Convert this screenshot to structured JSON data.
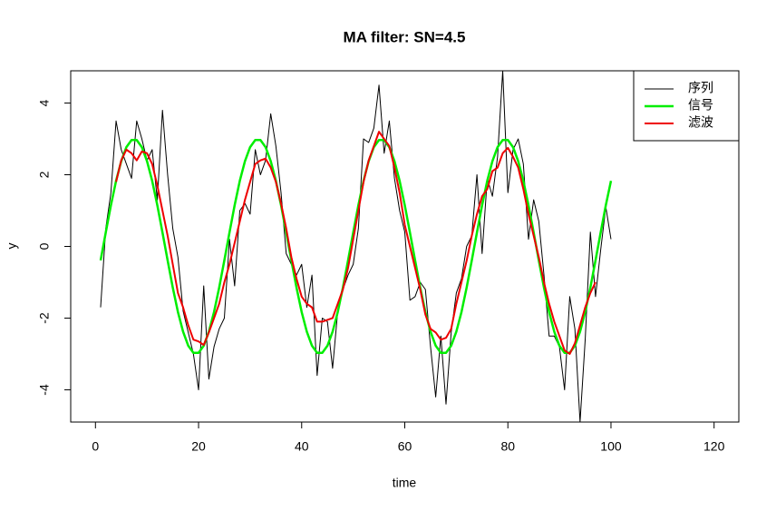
{
  "chart_data": {
    "type": "line",
    "title": "MA filter: SN=4.5",
    "x_label": "time",
    "y_label": "y",
    "x": [
      1,
      2,
      3,
      4,
      5,
      6,
      7,
      8,
      9,
      10,
      11,
      12,
      13,
      14,
      15,
      16,
      17,
      18,
      19,
      20,
      21,
      22,
      23,
      24,
      25,
      26,
      27,
      28,
      29,
      30,
      31,
      32,
      33,
      34,
      35,
      36,
      37,
      38,
      39,
      40,
      41,
      42,
      43,
      44,
      45,
      46,
      47,
      48,
      49,
      50,
      51,
      52,
      53,
      54,
      55,
      56,
      57,
      58,
      59,
      60,
      61,
      62,
      63,
      64,
      65,
      66,
      67,
      68,
      69,
      70,
      71,
      72,
      73,
      74,
      75,
      76,
      77,
      78,
      79,
      80,
      81,
      82,
      83,
      84,
      85,
      86,
      87,
      88,
      89,
      90,
      91,
      92,
      93,
      94,
      95,
      96,
      97,
      98,
      99,
      100
    ],
    "series": [
      {
        "name": "序列",
        "color": "#000000",
        "width": 1,
        "values": [
          -1.7,
          0.5,
          1.5,
          3.5,
          2.7,
          2.3,
          1.9,
          3.5,
          3.0,
          2.4,
          2.7,
          1.3,
          3.8,
          2.0,
          0.5,
          -0.3,
          -1.8,
          -2.4,
          -3.0,
          -4.0,
          -1.1,
          -3.7,
          -2.8,
          -2.3,
          -2.0,
          0.2,
          -1.1,
          1.0,
          1.2,
          0.9,
          2.7,
          2.0,
          2.4,
          3.7,
          2.8,
          1.5,
          -0.2,
          -0.5,
          -0.8,
          -0.5,
          -1.7,
          -0.8,
          -3.6,
          -2.0,
          -2.1,
          -3.4,
          -1.8,
          -1.2,
          -0.8,
          -0.5,
          0.5,
          3.0,
          2.9,
          3.3,
          4.5,
          2.6,
          3.5,
          1.9,
          1.0,
          0.4,
          -1.5,
          -1.4,
          -1.0,
          -1.2,
          -2.8,
          -4.2,
          -2.5,
          -4.4,
          -2.4,
          -1.3,
          -0.9,
          0.0,
          0.3,
          2.0,
          -0.2,
          1.9,
          1.4,
          2.5,
          4.9,
          1.5,
          2.7,
          3.0,
          2.3,
          0.2,
          1.3,
          0.7,
          -0.8,
          -2.5,
          -2.5,
          -2.8,
          -4.0,
          -1.4,
          -2.3,
          -4.9,
          -2.6,
          0.4,
          -1.4,
          -0.1,
          1.1,
          0.2
        ]
      },
      {
        "name": "信号",
        "color": "#00ee00",
        "width": 2.5,
        "values": [
          -0.39,
          0.39,
          1.15,
          1.83,
          2.38,
          2.77,
          2.97,
          2.97,
          2.77,
          2.38,
          1.83,
          1.15,
          0.39,
          -0.39,
          -1.15,
          -1.83,
          -2.38,
          -2.77,
          -2.97,
          -2.97,
          -2.77,
          -2.38,
          -1.83,
          -1.15,
          -0.39,
          0.39,
          1.15,
          1.83,
          2.38,
          2.77,
          2.97,
          2.97,
          2.77,
          2.38,
          1.83,
          1.15,
          0.39,
          -0.39,
          -1.15,
          -1.83,
          -2.38,
          -2.77,
          -2.97,
          -2.97,
          -2.77,
          -2.38,
          -1.83,
          -1.15,
          -0.39,
          0.39,
          1.15,
          1.83,
          2.38,
          2.77,
          2.97,
          2.97,
          2.77,
          2.38,
          1.83,
          1.15,
          0.39,
          -0.39,
          -1.15,
          -1.83,
          -2.38,
          -2.77,
          -2.97,
          -2.97,
          -2.77,
          -2.38,
          -1.83,
          -1.15,
          -0.39,
          0.39,
          1.15,
          1.83,
          2.38,
          2.77,
          2.97,
          2.97,
          2.77,
          2.38,
          1.83,
          1.15,
          0.39,
          -0.39,
          -1.15,
          -1.83,
          -2.38,
          -2.77,
          -2.97,
          -2.97,
          -2.77,
          -2.38,
          -1.83,
          -1.15,
          -0.39,
          0.39,
          1.15,
          1.83
        ]
      },
      {
        "name": "滤波",
        "color": "#ee0000",
        "width": 2,
        "values": [
          null,
          null,
          null,
          1.8,
          2.4,
          2.7,
          2.6,
          2.4,
          2.65,
          2.6,
          2.3,
          1.7,
          1.0,
          0.3,
          -0.5,
          -1.3,
          -1.7,
          -2.2,
          -2.6,
          -2.65,
          -2.75,
          -2.4,
          -2.0,
          -1.6,
          -1.0,
          -0.5,
          0.1,
          0.7,
          1.3,
          1.8,
          2.3,
          2.4,
          2.45,
          2.2,
          1.8,
          1.2,
          0.5,
          -0.3,
          -0.9,
          -1.4,
          -1.6,
          -1.7,
          -2.1,
          -2.1,
          -2.05,
          -2.0,
          -1.6,
          -1.2,
          -0.6,
          0.2,
          1.0,
          1.8,
          2.4,
          2.8,
          3.2,
          3.0,
          2.8,
          2.2,
          1.5,
          0.6,
          0.0,
          -0.6,
          -1.2,
          -1.9,
          -2.3,
          -2.4,
          -2.6,
          -2.55,
          -2.3,
          -1.6,
          -1.0,
          -0.4,
          0.3,
          0.9,
          1.4,
          1.6,
          2.1,
          2.2,
          2.6,
          2.75,
          2.5,
          2.2,
          1.6,
          0.9,
          0.3,
          -0.3,
          -1.0,
          -1.6,
          -2.1,
          -2.5,
          -2.9,
          -3.0,
          -2.7,
          -2.2,
          -1.7,
          -1.3,
          -1.0,
          null,
          null,
          null
        ]
      }
    ],
    "xlim": [
      -4.8,
      124.8
    ],
    "ylim": [
      -4.9,
      4.9
    ],
    "xticks": [
      0,
      20,
      40,
      60,
      80,
      100,
      120
    ],
    "yticks": [
      -4,
      -2,
      0,
      2,
      4
    ],
    "legend": "top-right"
  }
}
